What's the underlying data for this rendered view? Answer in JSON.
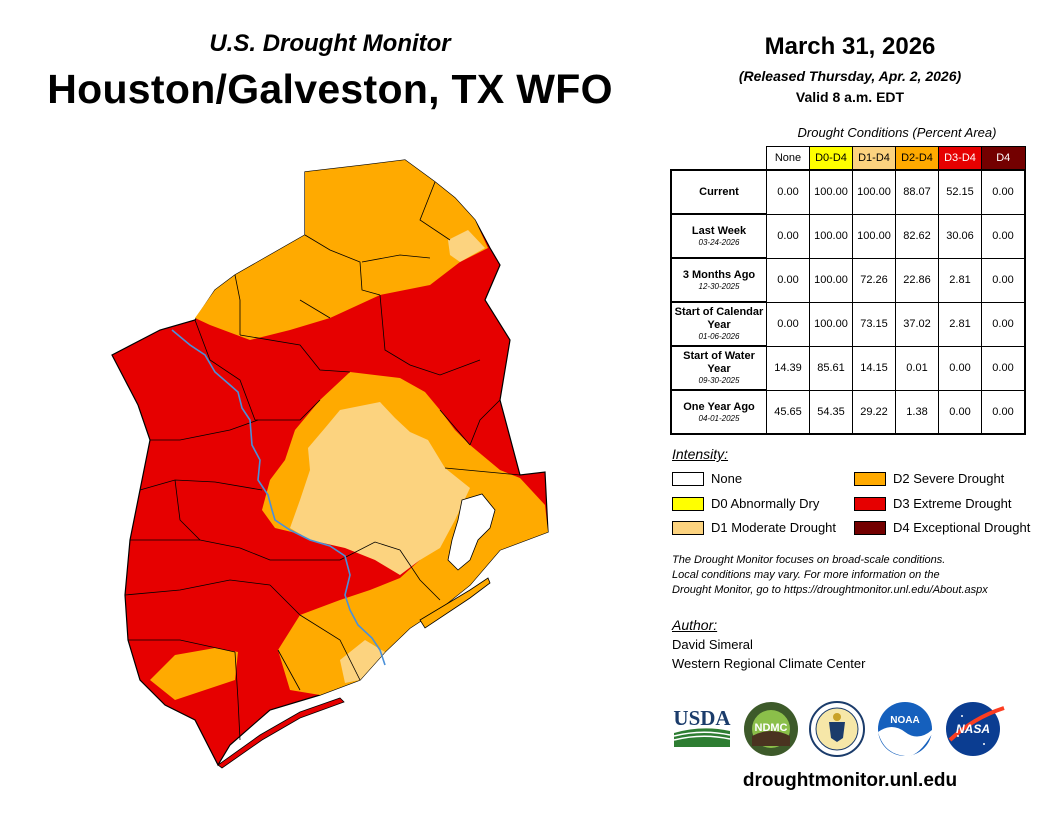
{
  "header": {
    "subtitle": "U.S. Drought Monitor",
    "title": "Houston/Galveston, TX WFO",
    "date": "March 31, 2026",
    "released": "(Released Thursday, Apr. 2, 2026)",
    "valid": "Valid 8 a.m. EDT"
  },
  "table": {
    "caption": "Drought Conditions (Percent Area)",
    "columns": [
      {
        "label": "None",
        "color": "#ffffff",
        "text_color": "#000000"
      },
      {
        "label": "D0-D4",
        "color": "#ffff00",
        "text_color": "#000000"
      },
      {
        "label": "D1-D4",
        "color": "#fcd37f",
        "text_color": "#000000"
      },
      {
        "label": "D2-D4",
        "color": "#ffaa00",
        "text_color": "#000000"
      },
      {
        "label": "D3-D4",
        "color": "#e60000",
        "text_color": "#ffffff"
      },
      {
        "label": "D4",
        "color": "#730000",
        "text_color": "#ffffff"
      }
    ],
    "rows": [
      {
        "label": "Current",
        "date": "",
        "values": [
          "0.00",
          "100.00",
          "100.00",
          "88.07",
          "52.15",
          "0.00"
        ]
      },
      {
        "label": "Last Week",
        "date": "03-24-2026",
        "values": [
          "0.00",
          "100.00",
          "100.00",
          "82.62",
          "30.06",
          "0.00"
        ]
      },
      {
        "label": "3 Months Ago",
        "date": "12-30-2025",
        "values": [
          "0.00",
          "100.00",
          "72.26",
          "22.86",
          "2.81",
          "0.00"
        ]
      },
      {
        "label": "Start of Calendar Year",
        "date": "01-06-2026",
        "values": [
          "0.00",
          "100.00",
          "73.15",
          "37.02",
          "2.81",
          "0.00"
        ]
      },
      {
        "label": "Start of Water Year",
        "date": "09-30-2025",
        "values": [
          "14.39",
          "85.61",
          "14.15",
          "0.01",
          "0.00",
          "0.00"
        ]
      },
      {
        "label": "One Year Ago",
        "date": "04-01-2025",
        "values": [
          "45.65",
          "54.35",
          "29.22",
          "1.38",
          "0.00",
          "0.00"
        ]
      }
    ]
  },
  "legend": {
    "title": "Intensity:",
    "items": [
      {
        "label": "None",
        "color": "#ffffff"
      },
      {
        "label": "D0 Abnormally Dry",
        "color": "#ffff00"
      },
      {
        "label": "D1 Moderate Drought",
        "color": "#fcd37f"
      },
      {
        "label": "D2 Severe Drought",
        "color": "#ffaa00"
      },
      {
        "label": "D3 Extreme Drought",
        "color": "#e60000"
      },
      {
        "label": "D4 Exceptional Drought",
        "color": "#730000"
      }
    ]
  },
  "note": {
    "line1": "The Drought Monitor focuses on broad-scale conditions.",
    "line2": "Local conditions may vary. For more information on the",
    "line3": "Drought Monitor, go to https://droughtmonitor.unl.edu/About.aspx"
  },
  "author": {
    "title": "Author:",
    "name": "David Simeral",
    "org": "Western Regional Climate Center"
  },
  "logos": {
    "usda": "USDA",
    "ndmc": "NDMC",
    "noaa": "NOAA",
    "nasa": "NASA"
  },
  "footer": {
    "url": "droughtmonitor.unl.edu"
  },
  "colors": {
    "d1": "#fcd37f",
    "d2": "#ffaa00",
    "d3": "#e60000",
    "river": "#4a90d9",
    "water": "#ffffff"
  }
}
